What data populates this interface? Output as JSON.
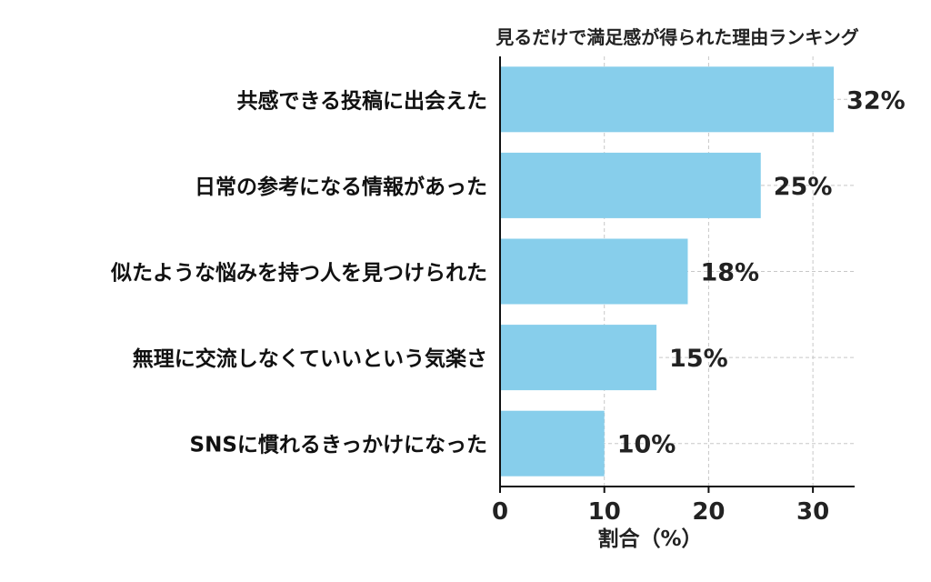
{
  "chart_data": {
    "type": "bar",
    "orientation": "horizontal",
    "title": "見るだけで満足感が得られた理由ランキング",
    "xlabel": "割合（%）",
    "ylabel": "",
    "categories": [
      "共感できる投稿に出会えた",
      "日常の参考になる情報があった",
      "似たような悩みを持つ人を見つけられた",
      "無理に交流しなくていいという気楽さ",
      "SNSに慣れるきっかけになった"
    ],
    "values": [
      32,
      25,
      18,
      15,
      10
    ],
    "value_labels": [
      "32%",
      "25%",
      "18%",
      "15%",
      "10%"
    ],
    "xlim": [
      0,
      34
    ],
    "xticks": [
      0,
      10,
      20,
      30
    ],
    "xtick_labels": [
      "0",
      "10",
      "20",
      "30"
    ],
    "grid": true,
    "legend": "none",
    "bar_color": "#87ceeb"
  }
}
